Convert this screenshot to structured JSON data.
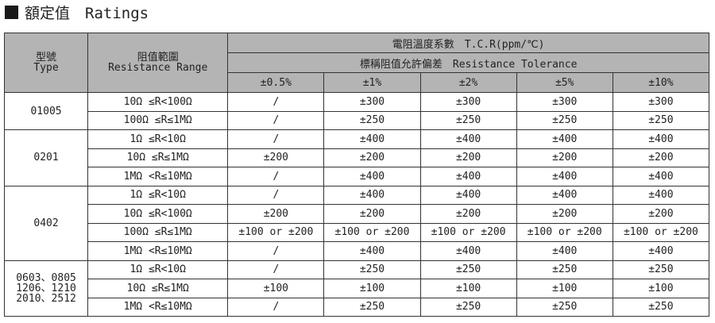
{
  "title": {
    "icon": "black-square-icon",
    "text": "額定值　Ratings"
  },
  "header": {
    "type_zh": "型號",
    "type_en": "Type",
    "range_zh": "阻值範圍",
    "range_en": "Resistance Range",
    "tcr": "電阻溫度系數　T.C.R(ppm/℃)",
    "tolerance": "標稱阻值允許偏差　Resistance Tolerance",
    "tolerances": [
      "±0.5%",
      "±1%",
      "±2%",
      "±5%",
      "±10%"
    ]
  },
  "groups": [
    {
      "type": [
        "01005"
      ],
      "rows": [
        {
          "range": "10Ω ≤R<100Ω",
          "values": [
            "/",
            "±300",
            "±300",
            "±300",
            "±300"
          ]
        },
        {
          "range": "100Ω ≤R≤1MΩ",
          "values": [
            "/",
            "±250",
            "±250",
            "±250",
            "±250"
          ]
        }
      ]
    },
    {
      "type": [
        "0201"
      ],
      "rows": [
        {
          "range": "1Ω ≤R<10Ω",
          "values": [
            "/",
            "±400",
            "±400",
            "±400",
            "±400"
          ]
        },
        {
          "range": "10Ω ≤R≤1MΩ",
          "values": [
            "±200",
            "±200",
            "±200",
            "±200",
            "±200"
          ]
        },
        {
          "range": "1MΩ <R≤10MΩ",
          "values": [
            "/",
            "±400",
            "±400",
            "±400",
            "±400"
          ]
        }
      ]
    },
    {
      "type": [
        "0402"
      ],
      "rows": [
        {
          "range": "1Ω ≤R<10Ω",
          "values": [
            "/",
            "±400",
            "±400",
            "±400",
            "±400"
          ]
        },
        {
          "range": "10Ω ≤R<100Ω",
          "values": [
            "±200",
            "±200",
            "±200",
            "±200",
            "±200"
          ]
        },
        {
          "range": "100Ω ≤R≤1MΩ",
          "values": [
            "±100 or ±200",
            "±100 or ±200",
            "±100 or ±200",
            "±100 or ±200",
            "±100 or ±200"
          ]
        },
        {
          "range": "1MΩ <R≤10MΩ",
          "values": [
            "/",
            "±400",
            "±400",
            "±400",
            "±400"
          ]
        }
      ]
    },
    {
      "type": [
        "0603、0805",
        "1206、1210",
        "2010、2512"
      ],
      "rows": [
        {
          "range": "1Ω ≤R<10Ω",
          "values": [
            "/",
            "±250",
            "±250",
            "±250",
            "±250"
          ]
        },
        {
          "range": "10Ω ≤R≤1MΩ",
          "values": [
            "±100",
            "±100",
            "±100",
            "±100",
            "±100"
          ]
        },
        {
          "range": "1MΩ <R≤10MΩ",
          "values": [
            "/",
            "±250",
            "±250",
            "±250",
            "±250"
          ]
        }
      ]
    }
  ]
}
